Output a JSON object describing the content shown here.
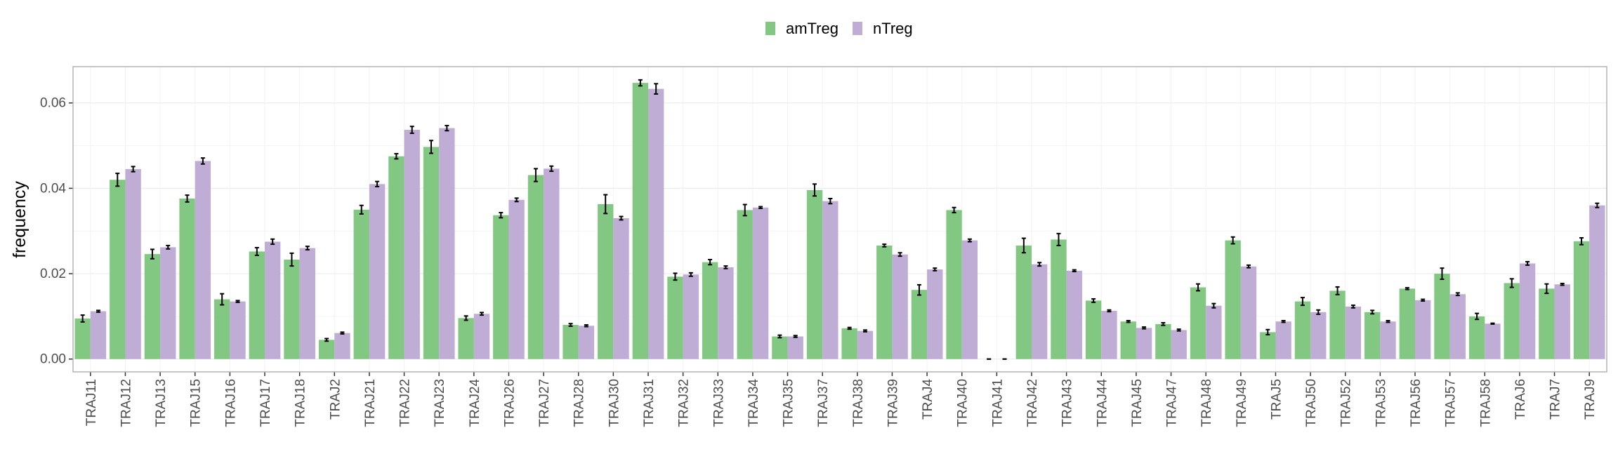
{
  "chart_data": {
    "type": "bar",
    "ylabel": "frequency",
    "ylim": [
      -0.003,
      0.0685
    ],
    "yticks": [
      0.0,
      0.02,
      0.04,
      0.06
    ],
    "ytick_labels": [
      "0.00",
      "0.02",
      "0.04",
      "0.06"
    ],
    "grid": true,
    "legend_position": "top",
    "categories": [
      "TRAJ11",
      "TRAJ12",
      "TRAJ13",
      "TRAJ15",
      "TRAJ16",
      "TRAJ17",
      "TRAJ18",
      "TRAJ2",
      "TRAJ21",
      "TRAJ22",
      "TRAJ23",
      "TRAJ24",
      "TRAJ26",
      "TRAJ27",
      "TRAJ28",
      "TRAJ30",
      "TRAJ31",
      "TRAJ32",
      "TRAJ33",
      "TRAJ34",
      "TRAJ35",
      "TRAJ37",
      "TRAJ38",
      "TRAJ39",
      "TRAJ4",
      "TRAJ40",
      "TRAJ41",
      "TRAJ42",
      "TRAJ43",
      "TRAJ44",
      "TRAJ45",
      "TRAJ47",
      "TRAJ48",
      "TRAJ49",
      "TRAJ5",
      "TRAJ50",
      "TRAJ52",
      "TRAJ53",
      "TRAJ56",
      "TRAJ57",
      "TRAJ58",
      "TRAJ6",
      "TRAJ7",
      "TRAJ9"
    ],
    "series": [
      {
        "name": "amTreg",
        "color": "#82c882",
        "values": [
          0.0095,
          0.042,
          0.0246,
          0.0376,
          0.014,
          0.0252,
          0.0233,
          0.0045,
          0.035,
          0.0475,
          0.0497,
          0.0096,
          0.0337,
          0.0431,
          0.008,
          0.0363,
          0.0647,
          0.0193,
          0.0227,
          0.0349,
          0.0053,
          0.0396,
          0.0072,
          0.0266,
          0.0162,
          0.0349,
          0.0,
          0.0266,
          0.028,
          0.0137,
          0.0088,
          0.0082,
          0.0168,
          0.0278,
          0.0063,
          0.0135,
          0.016,
          0.011,
          0.0165,
          0.02,
          0.01,
          0.0178,
          0.0165,
          0.0276
        ],
        "errors": [
          0.0008,
          0.0015,
          0.0011,
          0.0008,
          0.0013,
          0.0009,
          0.0015,
          0.0003,
          0.001,
          0.0006,
          0.0015,
          0.0005,
          0.0006,
          0.0015,
          0.0003,
          0.0022,
          0.0007,
          0.0008,
          0.0006,
          0.0013,
          0.0003,
          0.0014,
          0.0002,
          0.0003,
          0.0012,
          0.0006,
          0.0,
          0.0017,
          0.0014,
          0.0004,
          0.0002,
          0.0003,
          0.0008,
          0.0008,
          0.0006,
          0.0009,
          0.0009,
          0.0004,
          0.0002,
          0.0013,
          0.0007,
          0.001,
          0.0011,
          0.0008
        ]
      },
      {
        "name": "nTreg",
        "color": "#bfadd6",
        "values": [
          0.0112,
          0.0445,
          0.0262,
          0.0464,
          0.0135,
          0.0275,
          0.026,
          0.0061,
          0.041,
          0.0537,
          0.0541,
          0.0106,
          0.0373,
          0.0446,
          0.0078,
          0.033,
          0.0633,
          0.0198,
          0.0215,
          0.0355,
          0.0053,
          0.037,
          0.0066,
          0.0245,
          0.021,
          0.0278,
          0.0,
          0.0222,
          0.0207,
          0.0113,
          0.0073,
          0.0068,
          0.0125,
          0.0217,
          0.0088,
          0.011,
          0.0123,
          0.0088,
          0.0138,
          0.0152,
          0.0083,
          0.0224,
          0.0175,
          0.036
        ],
        "errors": [
          0.0002,
          0.0006,
          0.0004,
          0.0007,
          0.0002,
          0.0006,
          0.0004,
          0.0002,
          0.0006,
          0.0008,
          0.0006,
          0.0003,
          0.0004,
          0.0006,
          0.0002,
          0.0004,
          0.0012,
          0.0004,
          0.0003,
          0.0002,
          0.0002,
          0.0006,
          0.0002,
          0.0004,
          0.0003,
          0.0003,
          0.0,
          0.0004,
          0.0002,
          0.0002,
          0.0002,
          0.0002,
          0.0005,
          0.0003,
          0.0002,
          0.0005,
          0.0003,
          0.0002,
          0.0002,
          0.0003,
          0.0001,
          0.0004,
          0.0002,
          0.0005
        ]
      }
    ]
  }
}
